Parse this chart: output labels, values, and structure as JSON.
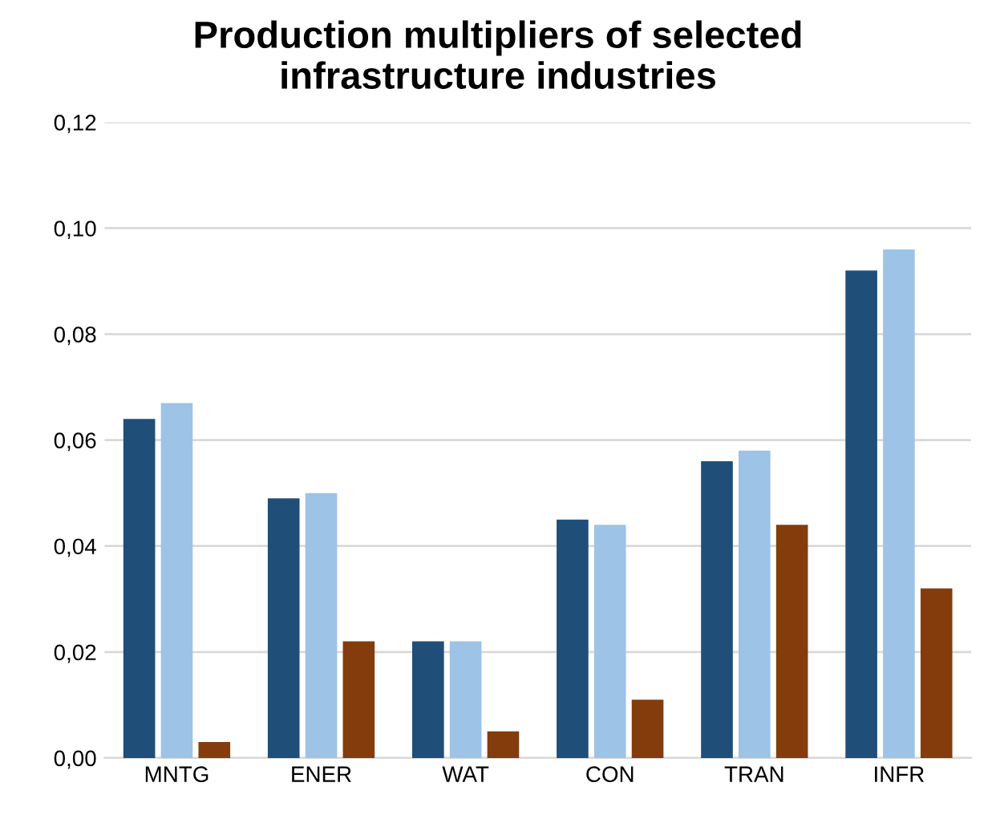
{
  "chart_data": {
    "type": "bar",
    "title": "Production multipliers of selected\ninfrastructure industries",
    "categories": [
      "MNTG",
      "ENER",
      "WAT",
      "CON",
      "TRAN",
      "INFR"
    ],
    "series": [
      {
        "color": "#1f4e79",
        "values": [
          0.064,
          0.049,
          0.022,
          0.045,
          0.056,
          0.092
        ]
      },
      {
        "color": "#9dc3e6",
        "values": [
          0.067,
          0.05,
          0.022,
          0.044,
          0.058,
          0.096
        ]
      },
      {
        "color": "#843c0c",
        "values": [
          0.003,
          0.022,
          0.005,
          0.011,
          0.044,
          0.032
        ]
      }
    ],
    "ylim": [
      0,
      0.12
    ],
    "yticks": [
      {
        "value": 0,
        "label": "0,00"
      },
      {
        "value": 0.02,
        "label": "0,02"
      },
      {
        "value": 0.04,
        "label": "0,04"
      },
      {
        "value": 0.06,
        "label": "0,06"
      },
      {
        "value": 0.08,
        "label": "0,08"
      },
      {
        "value": 0.1,
        "label": "0,10"
      },
      {
        "value": 0.12,
        "label": "0,12"
      }
    ],
    "grid": "y"
  }
}
